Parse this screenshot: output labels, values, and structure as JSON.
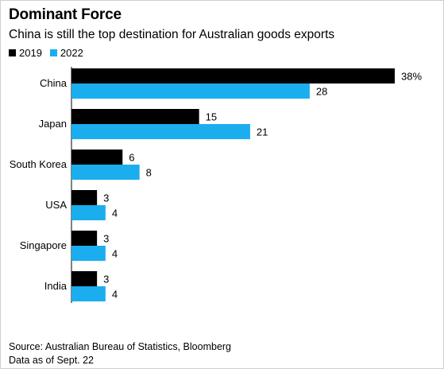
{
  "title": "Dominant Force",
  "subtitle": "China is still the top destination for Australian goods exports",
  "legend": [
    {
      "name": "2019",
      "color": "#000000"
    },
    {
      "name": "2022",
      "color": "#1aaeef"
    }
  ],
  "chart_data": {
    "type": "bar",
    "orientation": "horizontal",
    "categories": [
      "China",
      "Japan",
      "South Korea",
      "USA",
      "Singapore",
      "India"
    ],
    "series": [
      {
        "name": "2019",
        "color": "#000000",
        "values": [
          38,
          15,
          6,
          3,
          3,
          3
        ],
        "labels": [
          "38%",
          "15",
          "6",
          "3",
          "3",
          "3"
        ]
      },
      {
        "name": "2022",
        "color": "#1aaeef",
        "values": [
          28,
          21,
          8,
          4,
          4,
          4
        ],
        "labels": [
          "28",
          "21",
          "8",
          "4",
          "4",
          "4"
        ]
      }
    ],
    "xlim": [
      0,
      38
    ],
    "grid": false,
    "legend_position": "top-left"
  },
  "footer": {
    "source": "Source: Australian Bureau of Statistics, Bloomberg",
    "note": "Data as of Sept. 22"
  }
}
